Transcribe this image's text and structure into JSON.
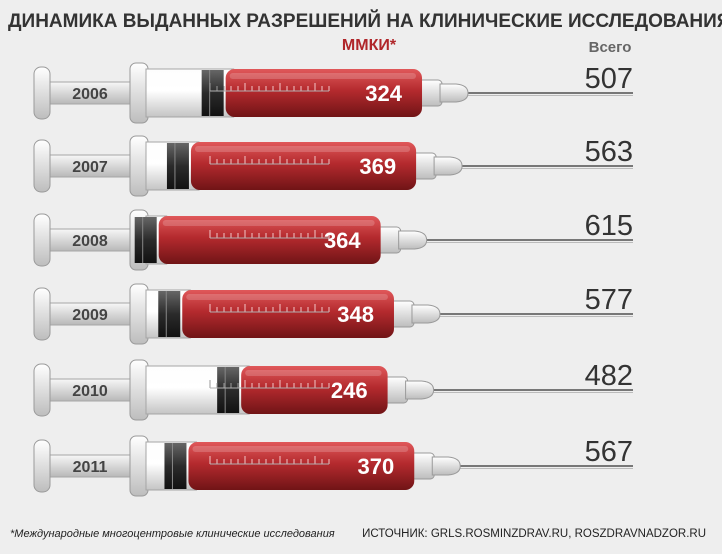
{
  "chart_data": {
    "type": "bar",
    "title": "ДИНАМИКА ВЫДАННЫХ РАЗРЕШЕНИЙ НА КЛИНИЧЕСКИЕ ИССЛЕДОВАНИЯ",
    "categories": [
      "2006",
      "2007",
      "2008",
      "2009",
      "2010",
      "2011"
    ],
    "series": [
      {
        "name": "ММКИ*",
        "values": [
          324,
          369,
          364,
          348,
          246,
          370
        ]
      },
      {
        "name": "Всего",
        "values": [
          507,
          563,
          615,
          577,
          482,
          567
        ]
      }
    ],
    "colors": {
      "mmki": "#b0262a",
      "total": "#dddddd"
    }
  },
  "footnote": "*Международные многоцентровые клинические исследования",
  "source": "ИСТОЧНИК: GRLS.ROSMINZDRAV.RU, ROSZDRAVNADZOR.RU"
}
